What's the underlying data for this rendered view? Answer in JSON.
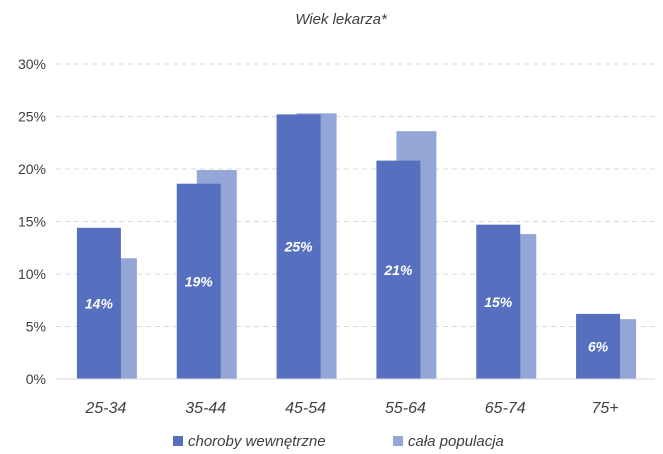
{
  "chart_data": {
    "type": "bar",
    "title": "Wiek lekarza*",
    "categories": [
      "25-34",
      "35-44",
      "45-54",
      "55-64",
      "65-74",
      "75+"
    ],
    "series": [
      {
        "name": "choroby wewnętrzne",
        "values": [
          14.4,
          18.6,
          25.2,
          20.8,
          14.7,
          6.2
        ],
        "labels": [
          "14%",
          "19%",
          "25%",
          "21%",
          "15%",
          "6%"
        ]
      },
      {
        "name": "cała populacja",
        "values": [
          11.5,
          19.9,
          25.3,
          23.6,
          13.8,
          5.7
        ]
      }
    ],
    "y_ticks": [
      "0%",
      "5%",
      "10%",
      "15%",
      "20%",
      "25%",
      "30%"
    ],
    "ylim": [
      0,
      30
    ],
    "grid": true,
    "legend_position": "bottom",
    "colors": {
      "series1": "#5670BF",
      "series2": "#94A6D6",
      "grid": "#D9D9D9",
      "text": "#404040"
    }
  }
}
